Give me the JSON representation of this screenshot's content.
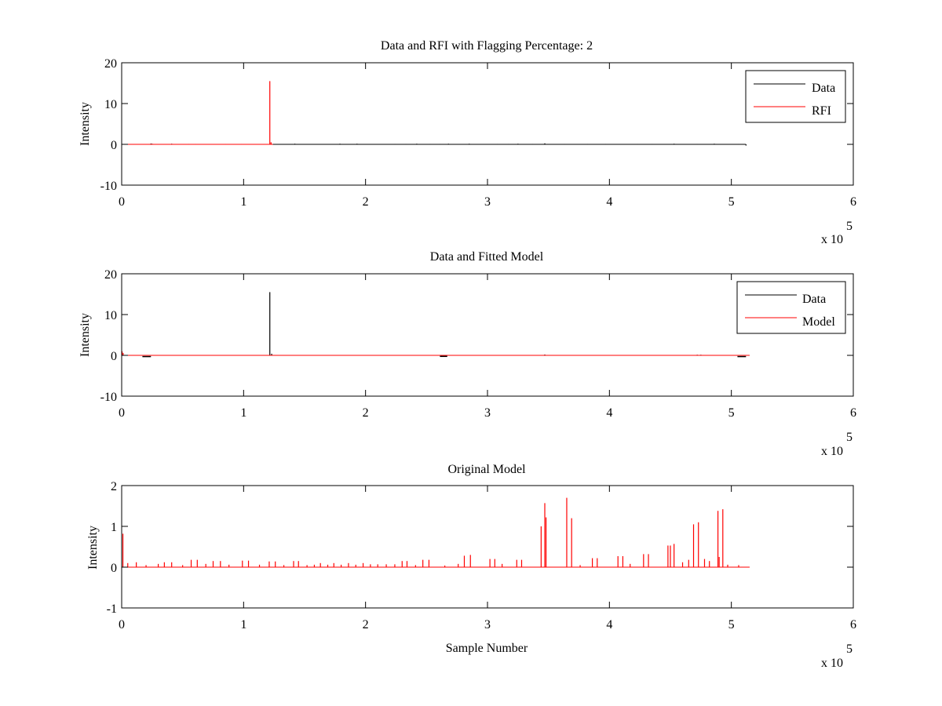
{
  "colors": {
    "data": "#000000",
    "rfi": "#ff0000",
    "model": "#ff0000",
    "axes": "#000000",
    "background": "#ffffff"
  },
  "chart_data": [
    {
      "type": "line",
      "title": "Data and RFI with Flagging Percentage: 2",
      "xlabel": "",
      "ylabel": "Intensity",
      "xlim": [
        0,
        6
      ],
      "ylim": [
        -10,
        20
      ],
      "xticks": [
        "0",
        "1",
        "2",
        "3",
        "4",
        "5",
        "6"
      ],
      "yticks": [
        "-10",
        "0",
        "10",
        "20"
      ],
      "x_multiplier_label": "x 10",
      "x_multiplier_exponent": "5",
      "legend_position": "top-right",
      "grid": false,
      "series": [
        {
          "name": "Data",
          "color": "#000000",
          "baseline": 0,
          "flat_end": 5.12,
          "spikes": [
            [
              0.24,
              0.2
            ],
            [
              0.25,
              0.15
            ],
            [
              0.41,
              0.15
            ],
            [
              0.42,
              0.1
            ],
            [
              0.55,
              0.1
            ],
            [
              0.61,
              0.1
            ],
            [
              0.85,
              0.1
            ],
            [
              0.98,
              0.1
            ],
            [
              1.42,
              0.15
            ],
            [
              1.79,
              0.15
            ],
            [
              1.93,
              0.15
            ],
            [
              1.94,
              0.1
            ],
            [
              2.24,
              0.1
            ],
            [
              2.33,
              0.1
            ],
            [
              2.42,
              0.15
            ],
            [
              2.53,
              0.1
            ],
            [
              2.61,
              0.1
            ],
            [
              2.68,
              0.15
            ],
            [
              2.85,
              0.15
            ],
            [
              3.08,
              0.1
            ],
            [
              3.17,
              0.1
            ],
            [
              3.25,
              0.15
            ],
            [
              3.37,
              0.1
            ],
            [
              3.47,
              0.25
            ],
            [
              3.63,
              0.1
            ],
            [
              3.82,
              0.1
            ],
            [
              3.97,
              0.1
            ],
            [
              4.23,
              0.1
            ],
            [
              4.35,
              0.1
            ],
            [
              4.53,
              0.15
            ],
            [
              4.72,
              0.1
            ],
            [
              4.86,
              0.15
            ],
            [
              5.06,
              0.1
            ],
            [
              5.12,
              -0.3
            ]
          ]
        },
        {
          "name": "RFI",
          "color": "#ff0000",
          "baseline": 0,
          "flat_end": 1.24,
          "spikes": [
            [
              1.215,
              15.5
            ],
            [
              1.225,
              0.5
            ]
          ]
        }
      ]
    },
    {
      "type": "line",
      "title": "Data and Fitted Model",
      "xlabel": "",
      "ylabel": "Intensity",
      "xlim": [
        0,
        6
      ],
      "ylim": [
        -10,
        20
      ],
      "xticks": [
        "0",
        "1",
        "2",
        "3",
        "4",
        "5",
        "6"
      ],
      "yticks": [
        "-10",
        "0",
        "10",
        "20"
      ],
      "x_multiplier_label": "x 10",
      "x_multiplier_exponent": "5",
      "legend_position": "top-right",
      "grid": false,
      "series": [
        {
          "name": "Data",
          "color": "#000000",
          "baseline": 0,
          "flat_end": 5.12,
          "spikes": [
            [
              0.003,
              0.9
            ],
            [
              1.215,
              15.5
            ],
            [
              1.23,
              0.4
            ],
            [
              3.47,
              0.2
            ],
            [
              4.72,
              0.15
            ],
            [
              4.75,
              0.15
            ]
          ],
          "dips": [
            [
              0.17,
              0.24,
              -0.3
            ],
            [
              2.61,
              2.67,
              -0.25
            ],
            [
              5.05,
              5.12,
              -0.3
            ]
          ]
        },
        {
          "name": "Model",
          "color": "#ff0000",
          "baseline": 0,
          "flat_end": 5.15,
          "spikes": [
            [
              0.003,
              1.0
            ],
            [
              0.012,
              0.6
            ]
          ]
        }
      ]
    },
    {
      "type": "line",
      "title": "Original Model",
      "xlabel": "Sample Number",
      "ylabel": "Intensity",
      "xlim": [
        0,
        6
      ],
      "ylim": [
        -1,
        2
      ],
      "xticks": [
        "0",
        "1",
        "2",
        "3",
        "4",
        "5",
        "6"
      ],
      "yticks": [
        "-1",
        "0",
        "1",
        "2"
      ],
      "x_multiplier_label": "x 10",
      "x_multiplier_exponent": "5",
      "legend_position": "none",
      "grid": false,
      "series": [
        {
          "name": "",
          "color": "#ff0000",
          "baseline": 0,
          "flat_end": 5.15,
          "spikes": [
            [
              0.01,
              0.82
            ],
            [
              0.05,
              0.1
            ],
            [
              0.12,
              0.12
            ],
            [
              0.2,
              0.05
            ],
            [
              0.3,
              0.08
            ],
            [
              0.35,
              0.12
            ],
            [
              0.41,
              0.12
            ],
            [
              0.5,
              0.05
            ],
            [
              0.57,
              0.18
            ],
            [
              0.62,
              0.18
            ],
            [
              0.69,
              0.08
            ],
            [
              0.75,
              0.15
            ],
            [
              0.81,
              0.15
            ],
            [
              0.88,
              0.06
            ],
            [
              0.99,
              0.16
            ],
            [
              1.04,
              0.16
            ],
            [
              1.13,
              0.06
            ],
            [
              1.21,
              0.14
            ],
            [
              1.26,
              0.14
            ],
            [
              1.33,
              0.05
            ],
            [
              1.41,
              0.15
            ],
            [
              1.45,
              0.15
            ],
            [
              1.52,
              0.05
            ],
            [
              1.58,
              0.06
            ],
            [
              1.63,
              0.1
            ],
            [
              1.69,
              0.06
            ],
            [
              1.74,
              0.1
            ],
            [
              1.8,
              0.06
            ],
            [
              1.86,
              0.1
            ],
            [
              1.92,
              0.06
            ],
            [
              1.98,
              0.1
            ],
            [
              2.04,
              0.07
            ],
            [
              2.1,
              0.07
            ],
            [
              2.17,
              0.07
            ],
            [
              2.24,
              0.07
            ],
            [
              2.3,
              0.15
            ],
            [
              2.34,
              0.15
            ],
            [
              2.41,
              0.05
            ],
            [
              2.47,
              0.18
            ],
            [
              2.52,
              0.18
            ],
            [
              2.65,
              0.04
            ],
            [
              2.76,
              0.08
            ],
            [
              2.81,
              0.28
            ],
            [
              2.86,
              0.3
            ],
            [
              3.02,
              0.2
            ],
            [
              3.06,
              0.2
            ],
            [
              3.12,
              0.08
            ],
            [
              3.24,
              0.18
            ],
            [
              3.28,
              0.18
            ],
            [
              3.44,
              1.0
            ],
            [
              3.47,
              1.57
            ],
            [
              3.48,
              1.22
            ],
            [
              3.65,
              1.7
            ],
            [
              3.69,
              1.2
            ],
            [
              3.76,
              0.05
            ],
            [
              3.86,
              0.22
            ],
            [
              3.9,
              0.22
            ],
            [
              4.07,
              0.27
            ],
            [
              4.11,
              0.27
            ],
            [
              4.17,
              0.08
            ],
            [
              4.28,
              0.32
            ],
            [
              4.32,
              0.32
            ],
            [
              4.48,
              0.53
            ],
            [
              4.5,
              0.53
            ],
            [
              4.53,
              0.57
            ],
            [
              4.6,
              0.12
            ],
            [
              4.65,
              0.18
            ],
            [
              4.69,
              1.05
            ],
            [
              4.73,
              1.1
            ],
            [
              4.78,
              0.2
            ],
            [
              4.82,
              0.15
            ],
            [
              4.89,
              1.38
            ],
            [
              4.9,
              0.25
            ],
            [
              4.93,
              1.42
            ],
            [
              4.97,
              0.06
            ],
            [
              5.06,
              0.05
            ]
          ]
        }
      ]
    }
  ]
}
